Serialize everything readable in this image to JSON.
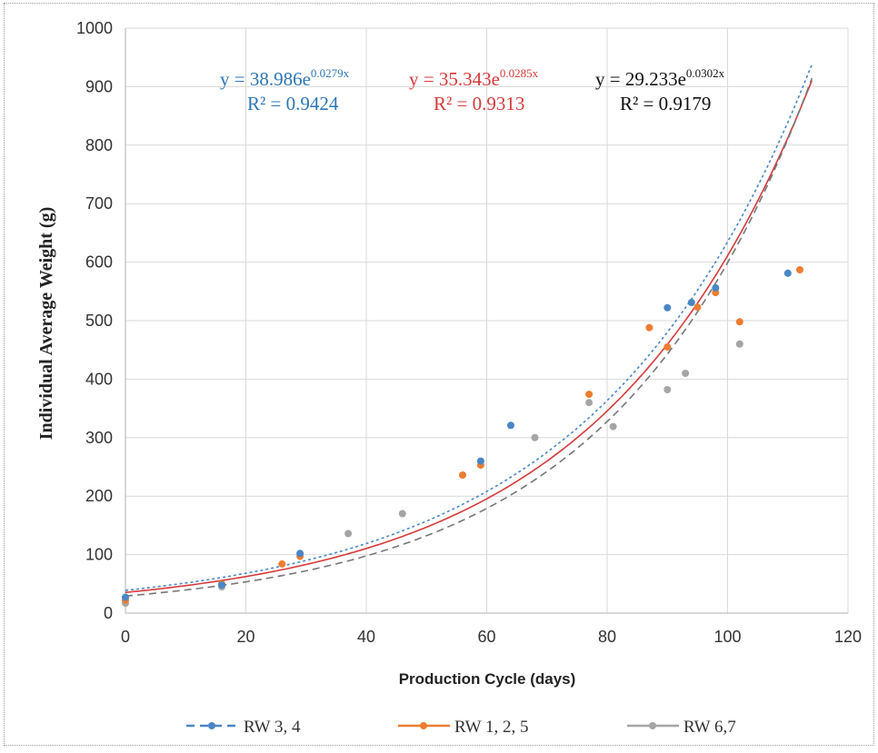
{
  "chart_data": {
    "type": "scatter",
    "xlabel": "Production Cycle (days)",
    "ylabel": "Individual Average Weight (g)",
    "xlim": [
      0,
      120
    ],
    "ylim": [
      0,
      1000
    ],
    "xticks": [
      "0",
      "20",
      "40",
      "60",
      "80",
      "100",
      "120"
    ],
    "yticks": [
      "0",
      "100",
      "200",
      "300",
      "400",
      "500",
      "600",
      "700",
      "800",
      "900",
      "1000"
    ],
    "grid": true,
    "legend_position": "bottom",
    "series": [
      {
        "name": "RW 3, 4",
        "color": "#4a86c5",
        "trend_style": "dotted",
        "legend_line_style": "dashed",
        "points": [
          [
            0,
            27
          ],
          [
            16,
            48
          ],
          [
            29,
            102
          ],
          [
            59,
            260
          ],
          [
            64,
            321
          ],
          [
            90,
            522
          ],
          [
            94,
            531
          ],
          [
            98,
            556
          ],
          [
            110,
            581
          ]
        ],
        "trendline": {
          "a": 38.986,
          "b": 0.0279,
          "x_end": 114
        },
        "equation": {
          "prefix": "y = 38.986e",
          "exponent": "0.0279x",
          "r2": "R² = 0.9424"
        }
      },
      {
        "name": "RW 1, 2, 5",
        "color": "#ed7d31",
        "trend_color": "#d63a3a",
        "trend_style": "solid",
        "legend_line_style": "solid",
        "points": [
          [
            0,
            22
          ],
          [
            16,
            50
          ],
          [
            26,
            84
          ],
          [
            29,
            97
          ],
          [
            56,
            236
          ],
          [
            59,
            253
          ],
          [
            77,
            374
          ],
          [
            87,
            488
          ],
          [
            90,
            455
          ],
          [
            95,
            523
          ],
          [
            98,
            548
          ],
          [
            102,
            498
          ],
          [
            112,
            587
          ]
        ],
        "trendline": {
          "a": 35.343,
          "b": 0.0285,
          "x_end": 114
        },
        "equation": {
          "prefix": "y = 35.343e",
          "exponent": "0.0285x",
          "r2": "R² = 0.9313"
        }
      },
      {
        "name": "RW 6,7",
        "color": "#a5a5a5",
        "trend_color": "#777777",
        "trend_style": "dashed",
        "legend_line_style": "solid",
        "points": [
          [
            0,
            17
          ],
          [
            16,
            45
          ],
          [
            37,
            136
          ],
          [
            46,
            170
          ],
          [
            68,
            300
          ],
          [
            77,
            360
          ],
          [
            81,
            319
          ],
          [
            90,
            382
          ],
          [
            93,
            410
          ],
          [
            102,
            460
          ]
        ],
        "trendline": {
          "a": 29.233,
          "b": 0.0302,
          "x_end": 114
        },
        "equation": {
          "prefix": "y = 29.233e",
          "exponent": "0.0302x",
          "r2": "R² = 0.9179"
        }
      }
    ]
  },
  "colors": {
    "grid": "#d9d9d9",
    "equation_black": "#111111"
  }
}
